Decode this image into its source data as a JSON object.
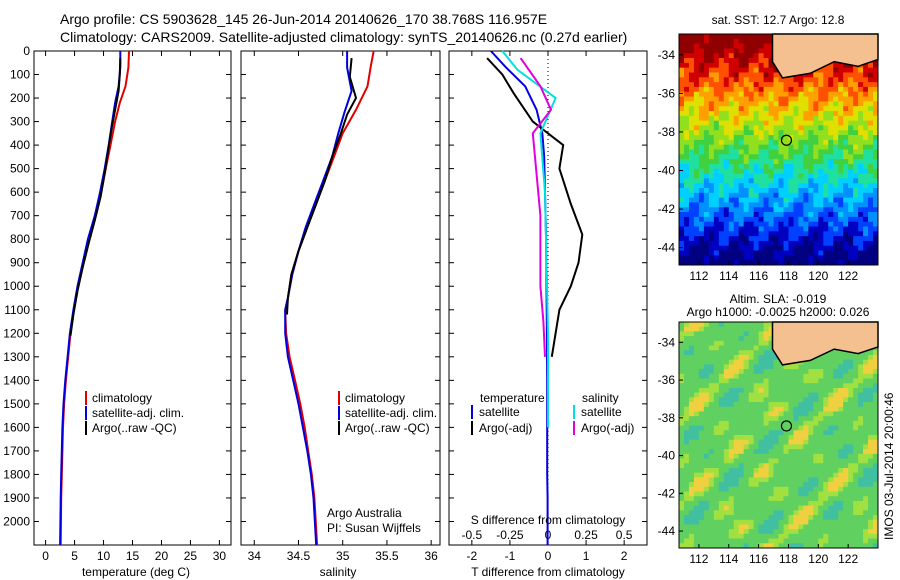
{
  "title": {
    "line1": "Argo profile: CS 5903628_145 26-Jun-2014 20140626_170 38.768S 116.957E",
    "line2": "Climatology: CARS2009. Satellite-adjusted climatology: synTS_20140626.nc (0.27d earlier)"
  },
  "colors": {
    "climatology": "#e00000",
    "satellite": "#0000e0",
    "argo": "#000000",
    "sal_sat": "#00e0e0",
    "sal_argo": "#e000e0"
  },
  "chart_data": [
    {
      "type": "line",
      "id": "temperature",
      "xlabel": "temperature (deg C)",
      "ylabel": "",
      "xlim": [
        -2,
        32
      ],
      "ylim": [
        2100,
        0
      ],
      "xticks": [
        "0",
        "5",
        "10",
        "15",
        "20",
        "25",
        "30"
      ],
      "yticks": [
        "0",
        "100",
        "200",
        "300",
        "400",
        "500",
        "600",
        "700",
        "800",
        "900",
        "1000",
        "1100",
        "1200",
        "1300",
        "1400",
        "1500",
        "1600",
        "1700",
        "1800",
        "1900",
        "2000"
      ],
      "legend": [
        "climatology",
        "satellite-adj. clim.",
        "Argo(..raw -QC)"
      ],
      "series": [
        {
          "name": "climatology",
          "x": [
            14.4,
            14.3,
            13.8,
            12.8,
            12,
            11.2,
            10.4,
            9.6,
            8.6,
            7.4,
            6.5,
            5.6,
            4.9,
            4.3,
            3.9,
            3.5,
            3.2,
            3,
            2.9,
            2.8,
            2.7,
            2.6
          ],
          "y": [
            0,
            70,
            150,
            220,
            300,
            400,
            500,
            600,
            700,
            800,
            900,
            1000,
            1100,
            1200,
            1300,
            1400,
            1500,
            1600,
            1700,
            1800,
            1900,
            2100
          ]
        },
        {
          "name": "satellite-adj. clim.",
          "x": [
            12.9,
            12.9,
            12.6,
            12,
            11.5,
            10.9,
            10.2,
            9.4,
            8.5,
            7.3,
            6.4,
            5.5,
            4.8,
            4.2,
            3.8,
            3.4,
            3.1,
            2.9,
            2.8,
            2.7,
            2.6,
            2.5
          ],
          "y": [
            0,
            70,
            150,
            220,
            300,
            400,
            500,
            600,
            700,
            800,
            900,
            1000,
            1100,
            1200,
            1300,
            1400,
            1500,
            1600,
            1700,
            1800,
            1900,
            2100
          ]
        },
        {
          "name": "Argo(..raw -QC)",
          "x": [
            12.9,
            12.8,
            12.6,
            12,
            11.4,
            10.8,
            10.2,
            9.5,
            8.5,
            7.4,
            6.4,
            5.5,
            4.8,
            4.3
          ],
          "y": [
            30,
            100,
            170,
            250,
            330,
            420,
            520,
            620,
            720,
            820,
            920,
            1020,
            1120,
            1210
          ]
        }
      ]
    },
    {
      "type": "line",
      "id": "salinity",
      "xlabel": "salinity",
      "xlim": [
        33.85,
        36.1
      ],
      "ylim": [
        2100,
        0
      ],
      "xticks": [
        "34",
        "34.5",
        "35",
        "35.5",
        "36"
      ],
      "legend": [
        "climatology",
        "satellite-adj. clim.",
        "Argo(..raw -QC)"
      ],
      "annotation": [
        "Argo Australia",
        "PI: Susan Wijffels"
      ],
      "series": [
        {
          "name": "climatology",
          "x": [
            35.35,
            35.32,
            35.28,
            35.15,
            35,
            34.9,
            34.8,
            34.7,
            34.6,
            34.5,
            34.42,
            34.38,
            34.35,
            34.36,
            34.4,
            34.46,
            34.52,
            34.57,
            34.61,
            34.65,
            34.68,
            34.71
          ],
          "y": [
            0,
            60,
            150,
            250,
            350,
            450,
            550,
            650,
            750,
            850,
            950,
            1050,
            1100,
            1200,
            1300,
            1400,
            1500,
            1600,
            1700,
            1800,
            1900,
            2100
          ]
        },
        {
          "name": "satellite-adj. clim.",
          "x": [
            35.05,
            35.05,
            35.1,
            35.02,
            34.95,
            34.88,
            34.78,
            34.68,
            34.58,
            34.5,
            34.43,
            34.38,
            34.35,
            34.35,
            34.38,
            34.44,
            34.5,
            34.55,
            34.6,
            34.64,
            34.67,
            34.7
          ],
          "y": [
            0,
            70,
            170,
            260,
            350,
            450,
            550,
            650,
            750,
            850,
            950,
            1050,
            1100,
            1200,
            1300,
            1400,
            1500,
            1600,
            1700,
            1800,
            1900,
            2100
          ]
        },
        {
          "name": "Argo(..raw -QC)",
          "x": [
            35.1,
            35.08,
            35.15,
            35.05,
            34.98,
            34.88,
            34.8,
            34.7,
            34.6,
            34.5,
            34.42,
            34.38,
            34.37
          ],
          "y": [
            30,
            110,
            200,
            270,
            350,
            450,
            550,
            650,
            750,
            850,
            950,
            1050,
            1120
          ]
        }
      ]
    },
    {
      "type": "line",
      "id": "difference",
      "xlabel": "T difference from climatology",
      "xlabel_top": "S difference from climatology",
      "xlim": [
        -2.6,
        2.6
      ],
      "ylim": [
        2100,
        0
      ],
      "xticks": [
        "-2",
        "-1",
        "0",
        "1",
        "2"
      ],
      "xticks_s": [
        "-0.5",
        "-0.25",
        "0",
        "0.25",
        "0.5"
      ],
      "legend_t": {
        "heading": "temperature",
        "items": [
          "satellite",
          "Argo(-adj)"
        ]
      },
      "legend_s": {
        "heading": "salinity",
        "items": [
          "satellite",
          "Argo(-adj)"
        ]
      },
      "series": [
        {
          "name": "temperature satellite",
          "x": [
            -1.5,
            -1.1,
            -0.6,
            -0.3,
            -0.15,
            -0.1,
            -0.08,
            -0.05,
            -0.04,
            -0.03,
            -0.02,
            -0.02,
            -0.02,
            -0.01,
            -0.01,
            -0.01
          ],
          "y": [
            0,
            70,
            150,
            250,
            350,
            450,
            600,
            800,
            1000,
            1200,
            1400,
            1600,
            1800,
            1900,
            2000,
            2100
          ]
        },
        {
          "name": "temperature Argo(-adj)",
          "x": [
            -1.6,
            -1.2,
            -0.9,
            -0.4,
            0.4,
            0.3,
            0.6,
            0.9,
            0.8,
            0.6,
            0.3,
            0.2,
            0.1
          ],
          "y": [
            30,
            100,
            180,
            300,
            400,
            500,
            650,
            780,
            900,
            1000,
            1100,
            1200,
            1300
          ]
        },
        {
          "name": "salinity satellite",
          "x": [
            -0.3,
            -0.2,
            0.05,
            -0.05,
            -0.02,
            -0.01,
            0,
            0
          ],
          "y": [
            0,
            80,
            200,
            350,
            600,
            900,
            1200,
            1600
          ]
        },
        {
          "name": "salinity Argo(-adj)",
          "x": [
            -0.18,
            -0.05,
            0.02,
            -0.1,
            -0.05,
            -0.05,
            -0.03,
            -0.02
          ],
          "y": [
            30,
            150,
            250,
            350,
            700,
            1000,
            1150,
            1300
          ]
        }
      ]
    }
  ],
  "maps": [
    {
      "title": "sat. SST: 12.7 Argo: 12.8",
      "xticks": [
        "112",
        "114",
        "116",
        "118",
        "120",
        "122"
      ],
      "yticks": [
        "-34",
        "-36",
        "-38",
        "-40",
        "-42",
        "-44"
      ]
    },
    {
      "title1": "Altim. SLA: -0.019",
      "title2": "Argo h1000: -0.0025 h2000: 0.026",
      "xticks": [
        "112",
        "114",
        "116",
        "118",
        "120",
        "122"
      ],
      "yticks": [
        "-34",
        "-36",
        "-38",
        "-40",
        "-42",
        "-44"
      ]
    }
  ],
  "footer_stamp": "IMOS 03-Jul-2014 20:00:46"
}
